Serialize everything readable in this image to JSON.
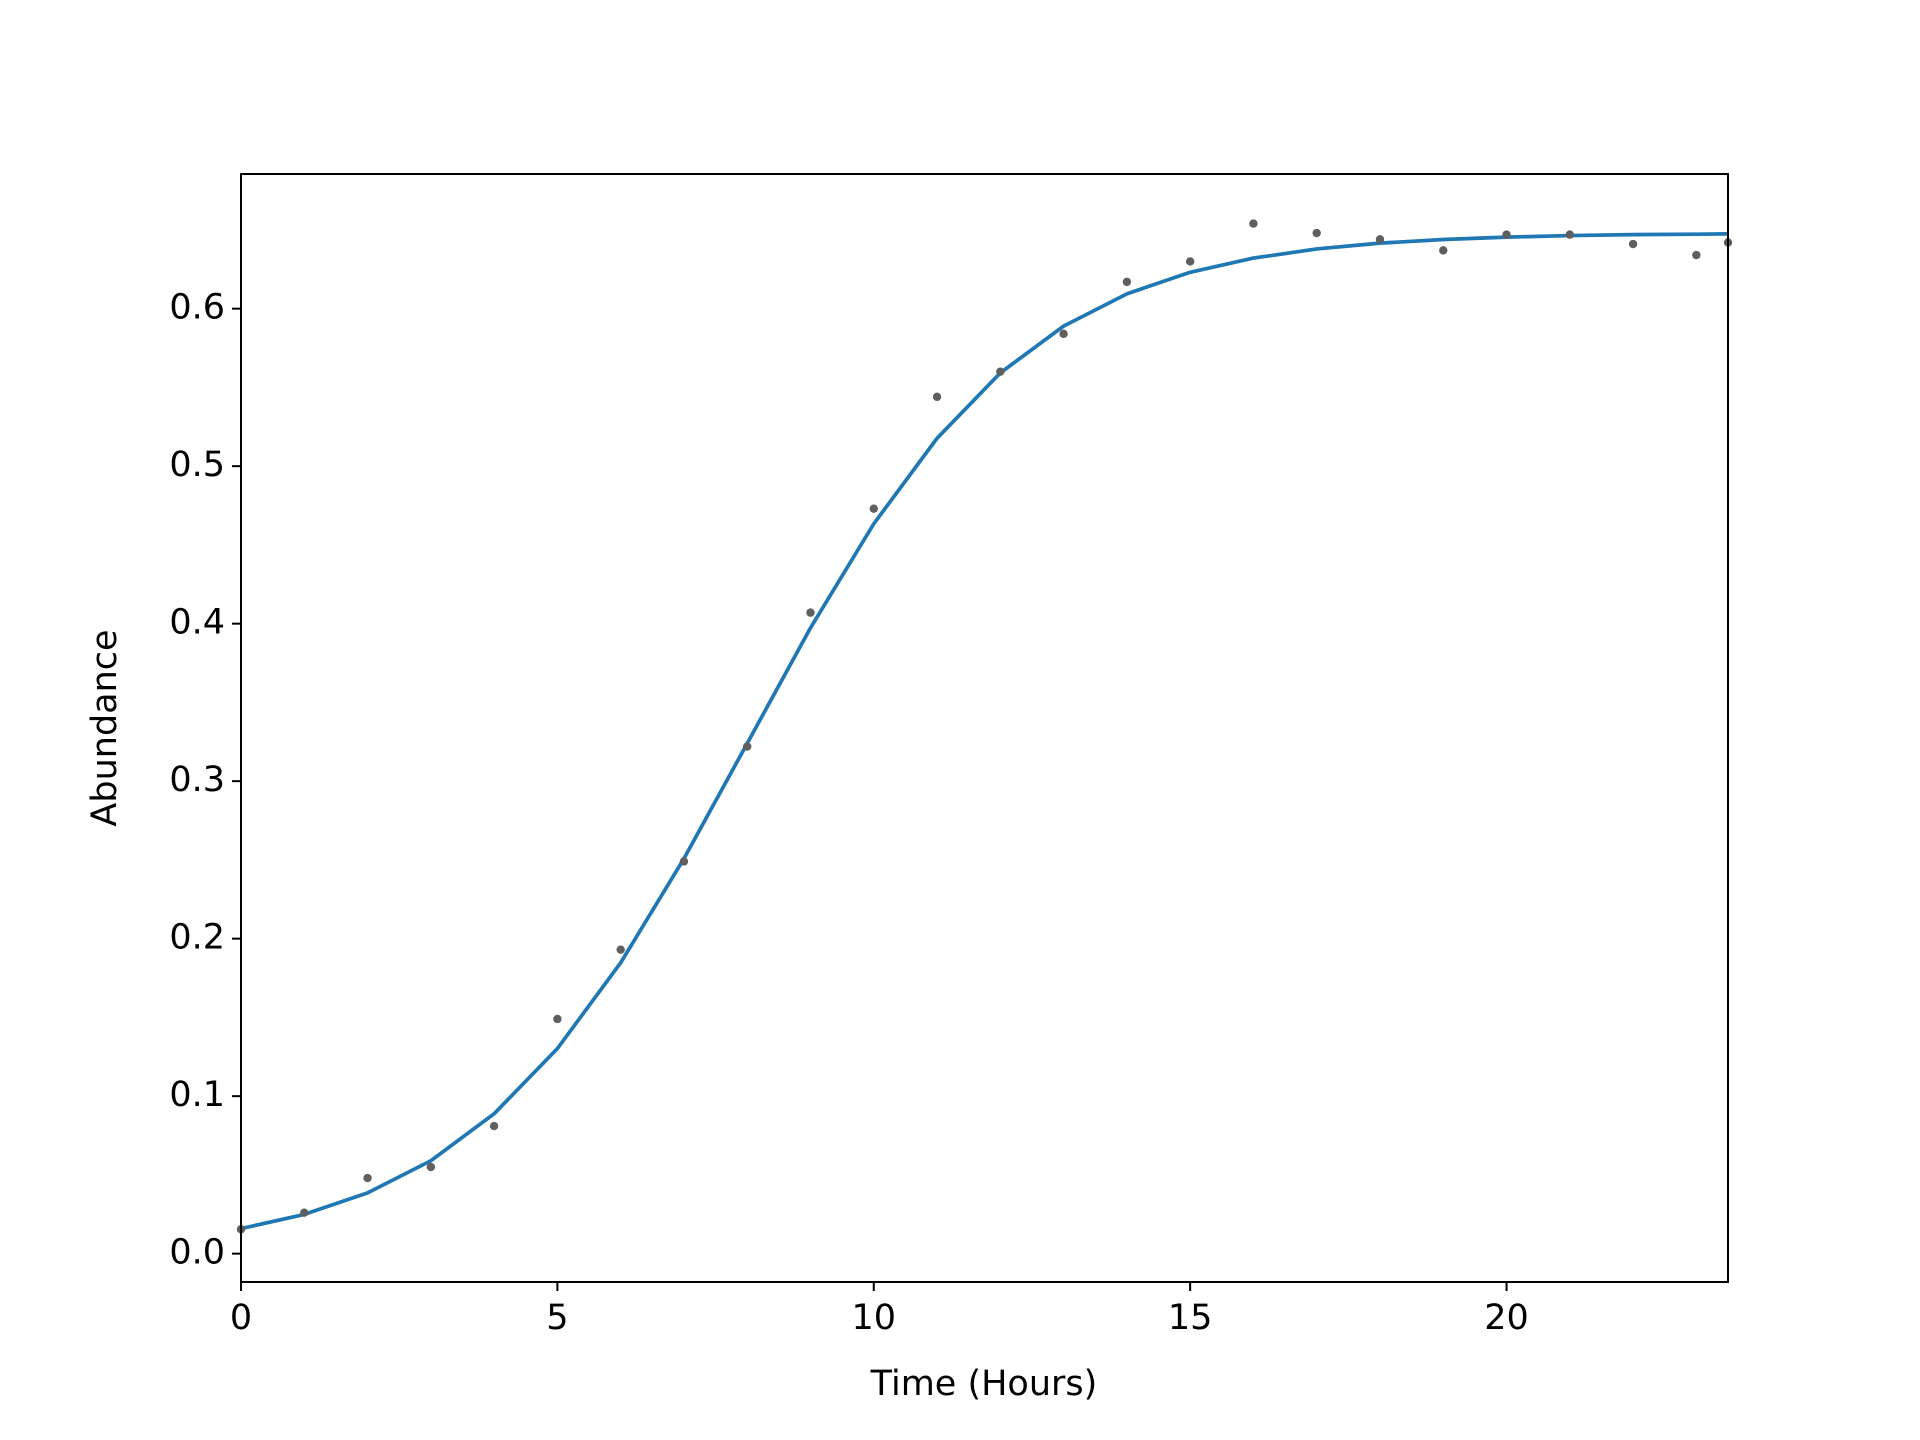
{
  "chart_data": {
    "type": "scatter",
    "xlabel": "Time (Hours)",
    "ylabel": "Abundance",
    "xlim": [
      0,
      23.5
    ],
    "ylim": [
      -0.018,
      0.6855
    ],
    "xticks": [
      0,
      5,
      10,
      15,
      20
    ],
    "yticks": [
      {
        "value": 0,
        "label": "0.0"
      },
      0.1,
      0.2,
      0.3,
      0.4,
      0.5,
      0.6
    ],
    "series": [
      {
        "type": "scatter",
        "color": "#5f5f5f",
        "x": [
          0,
          1,
          2,
          3,
          4,
          5,
          6,
          7,
          8,
          9,
          10,
          11,
          12,
          13,
          14,
          15,
          16,
          17,
          18,
          19,
          20,
          21,
          22,
          23,
          23.5
        ],
        "values": [
          0.0155,
          0.026,
          0.048,
          0.055,
          0.081,
          0.149,
          0.193,
          0.249,
          0.322,
          0.407,
          0.473,
          0.544,
          0.56,
          0.584,
          0.617,
          0.63,
          0.654,
          0.648,
          0.644,
          0.637,
          0.647,
          0.647,
          0.641,
          0.634,
          0.642
        ]
      },
      {
        "type": "line",
        "color": "#1f77b4",
        "x": [
          0,
          1,
          2,
          3,
          4,
          5,
          6,
          7,
          8,
          9,
          10,
          11,
          12,
          13,
          14,
          15,
          16,
          17,
          18,
          19,
          20,
          21,
          22,
          23,
          23.5
        ],
        "values": [
          0.0159,
          0.0249,
          0.0386,
          0.059,
          0.0888,
          0.1302,
          0.1847,
          0.2508,
          0.324,
          0.3973,
          0.4634,
          0.5177,
          0.5592,
          0.5889,
          0.6094,
          0.6231,
          0.6321,
          0.6379,
          0.6416,
          0.6439,
          0.6454,
          0.6464,
          0.647,
          0.6473,
          0.6475
        ]
      }
    ]
  }
}
